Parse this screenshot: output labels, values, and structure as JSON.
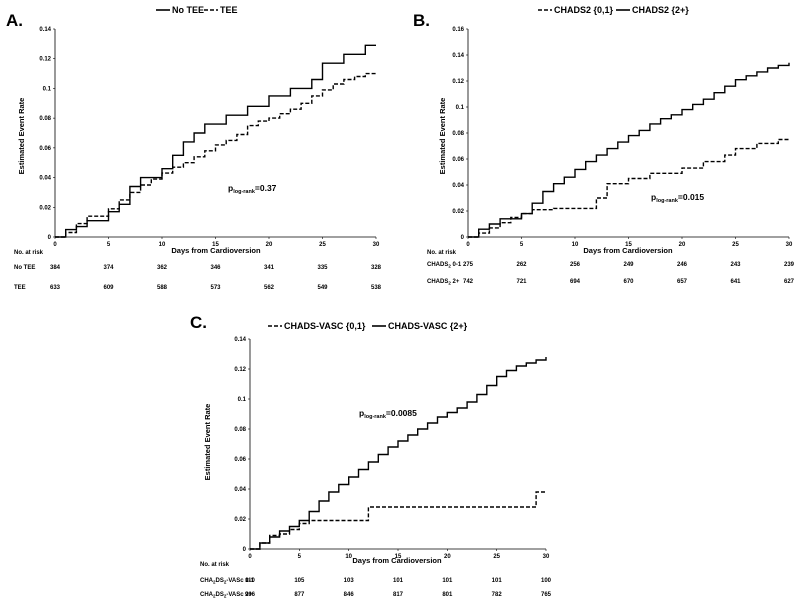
{
  "chart_data": [
    {
      "panel": "A.",
      "type": "line",
      "xlabel": "Days from Cardioversion",
      "ylabel": "Estimated Event Rate",
      "xlim": [
        0,
        30
      ],
      "ylim": [
        0,
        0.14
      ],
      "xticks": [
        0,
        5,
        10,
        15,
        20,
        25,
        30
      ],
      "yticks": [
        0,
        0.02,
        0.04,
        0.06,
        0.08,
        0.1,
        0.12,
        0.14
      ],
      "annotation": {
        "prefix": "p",
        "sub": "log-rank",
        "value": "=0.37"
      },
      "series": [
        {
          "name": "No TEE",
          "style": "solid",
          "x": [
            0,
            1,
            2,
            3,
            5,
            6,
            7,
            8,
            10,
            11,
            12,
            13,
            14,
            16,
            18,
            20,
            22,
            24,
            25,
            27,
            29,
            30
          ],
          "y": [
            0,
            0.005,
            0.007,
            0.011,
            0.017,
            0.022,
            0.034,
            0.04,
            0.046,
            0.055,
            0.064,
            0.07,
            0.076,
            0.082,
            0.088,
            0.095,
            0.1,
            0.106,
            0.117,
            0.123,
            0.129,
            0.129
          ]
        },
        {
          "name": "TEE",
          "style": "dashed",
          "x": [
            0,
            1,
            2,
            3,
            5,
            6,
            7,
            8,
            9,
            10,
            11,
            12,
            13,
            14,
            15,
            16,
            17,
            18,
            19,
            20,
            21,
            22,
            23,
            24,
            25,
            26,
            27,
            28,
            29,
            30
          ],
          "y": [
            0,
            0.003,
            0.009,
            0.014,
            0.019,
            0.025,
            0.03,
            0.035,
            0.039,
            0.043,
            0.047,
            0.05,
            0.054,
            0.058,
            0.062,
            0.065,
            0.069,
            0.075,
            0.078,
            0.08,
            0.083,
            0.086,
            0.09,
            0.095,
            0.099,
            0.103,
            0.106,
            0.108,
            0.11,
            0.111
          ]
        }
      ],
      "risk_table": {
        "header": "No. at risk",
        "rows": [
          {
            "label": "No TEE",
            "values": [
              "384",
              "374",
              "362",
              "346",
              "341",
              "335",
              "328"
            ]
          },
          {
            "label": "TEE",
            "values": [
              "633",
              "609",
              "588",
              "573",
              "562",
              "549",
              "538"
            ]
          }
        ]
      }
    },
    {
      "panel": "B.",
      "type": "line",
      "xlabel": "Days from Cardioversion",
      "ylabel": "Estimated Event Rate",
      "xlim": [
        0,
        30
      ],
      "ylim": [
        0,
        0.16
      ],
      "xticks": [
        0,
        5,
        10,
        15,
        20,
        25,
        30
      ],
      "yticks": [
        0,
        0.02,
        0.04,
        0.06,
        0.08,
        0.1,
        0.12,
        0.14,
        0.16
      ],
      "annotation": {
        "prefix": "p",
        "sub": "log-rank",
        "value": "=0.015"
      },
      "series": [
        {
          "name": "CHADS2 {0,1}",
          "style": "dashed",
          "x": [
            0,
            1,
            2,
            3,
            4,
            5,
            6,
            8,
            12,
            13,
            15,
            17,
            20,
            22,
            24,
            25,
            27,
            29,
            30
          ],
          "y": [
            0,
            0.003,
            0.007,
            0.011,
            0.015,
            0.018,
            0.021,
            0.022,
            0.03,
            0.041,
            0.045,
            0.049,
            0.053,
            0.058,
            0.063,
            0.068,
            0.072,
            0.075,
            0.076
          ]
        },
        {
          "name": "CHADS2 {2+}",
          "style": "solid",
          "x": [
            0,
            1,
            2,
            3,
            5,
            6,
            7,
            8,
            9,
            10,
            11,
            12,
            13,
            14,
            15,
            16,
            17,
            18,
            19,
            20,
            21,
            22,
            23,
            24,
            25,
            26,
            27,
            28,
            29,
            30
          ],
          "y": [
            0,
            0.006,
            0.01,
            0.014,
            0.018,
            0.026,
            0.035,
            0.041,
            0.046,
            0.052,
            0.058,
            0.063,
            0.068,
            0.073,
            0.078,
            0.082,
            0.087,
            0.091,
            0.094,
            0.098,
            0.102,
            0.106,
            0.111,
            0.116,
            0.121,
            0.124,
            0.127,
            0.13,
            0.132,
            0.134
          ]
        }
      ],
      "risk_table": {
        "header": "No. at risk",
        "rows": [
          {
            "label_main": "CHADS",
            "label_sub": "2",
            "label_rest": " 0-1",
            "values": [
              "275",
              "262",
              "256",
              "249",
              "246",
              "243",
              "239"
            ]
          },
          {
            "label_main": "CHADS",
            "label_sub": "2",
            "label_rest": " 2+",
            "values": [
              "742",
              "721",
              "694",
              "670",
              "657",
              "641",
              "627"
            ]
          }
        ]
      }
    },
    {
      "panel": "C.",
      "type": "line",
      "xlabel": "Days from Cardioversion",
      "ylabel": "Estimated Event Rate",
      "xlim": [
        0,
        30
      ],
      "ylim": [
        0,
        0.14
      ],
      "xticks": [
        0,
        5,
        10,
        15,
        20,
        25,
        30
      ],
      "yticks": [
        0,
        0.02,
        0.04,
        0.06,
        0.08,
        0.1,
        0.12,
        0.14
      ],
      "annotation": {
        "prefix": "p",
        "sub": "log-rank",
        "value": "=0.0085"
      },
      "series": [
        {
          "name": "CHADS-VASC {0,1}",
          "style": "dashed",
          "x": [
            0,
            1,
            2,
            3,
            4,
            5,
            6,
            12,
            29,
            30
          ],
          "y": [
            0,
            0.004,
            0.009,
            0.01,
            0.013,
            0.017,
            0.019,
            0.028,
            0.038,
            0.038
          ]
        },
        {
          "name": "CHADS-VASC {2+}",
          "style": "solid",
          "x": [
            0,
            1,
            2,
            3,
            4,
            5,
            6,
            7,
            8,
            9,
            10,
            11,
            12,
            13,
            14,
            15,
            16,
            17,
            18,
            19,
            20,
            21,
            22,
            23,
            24,
            25,
            26,
            27,
            28,
            29,
            30
          ],
          "y": [
            0,
            0.004,
            0.008,
            0.012,
            0.015,
            0.019,
            0.025,
            0.032,
            0.038,
            0.043,
            0.048,
            0.053,
            0.058,
            0.063,
            0.068,
            0.072,
            0.076,
            0.08,
            0.084,
            0.088,
            0.091,
            0.094,
            0.098,
            0.103,
            0.109,
            0.115,
            0.119,
            0.122,
            0.124,
            0.126,
            0.128
          ]
        }
      ],
      "risk_table": {
        "header": "No. at risk",
        "rows": [
          {
            "label_main": "CHA",
            "label_sub": "2",
            "label_mid": "DS",
            "label_sub2": "2",
            "label_rest": "-VASc 0-1",
            "values": [
              "110",
              "105",
              "103",
              "101",
              "101",
              "101",
              "100"
            ]
          },
          {
            "label_main": "CHA",
            "label_sub": "2",
            "label_mid": "DS",
            "label_sub2": "2",
            "label_rest": "-VASc 2+",
            "values": [
              "906",
              "877",
              "846",
              "817",
              "801",
              "782",
              "765"
            ]
          }
        ]
      }
    }
  ]
}
